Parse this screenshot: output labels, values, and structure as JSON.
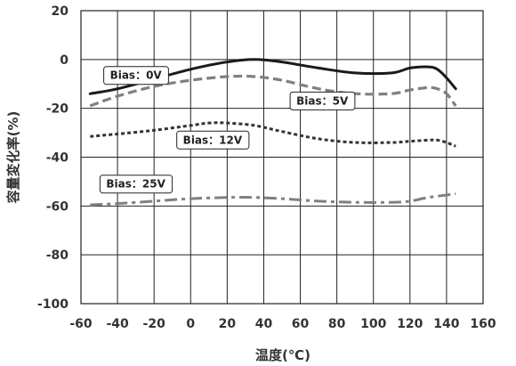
{
  "chart_data": {
    "type": "line",
    "xlabel": "温度(℃)",
    "ylabel": "容量変化率(%)",
    "xlim": [
      -60,
      160
    ],
    "ylim": [
      -100,
      20
    ],
    "xticks": [
      -60,
      -40,
      -20,
      0,
      20,
      40,
      60,
      80,
      100,
      120,
      140,
      160
    ],
    "yticks": [
      20,
      0,
      -20,
      -40,
      -60,
      -80,
      -100
    ],
    "grid": true,
    "series": [
      {
        "name": "Bias：0V",
        "style": "solid",
        "color": "#1a1a1a",
        "x": [
          -55,
          -40,
          -20,
          0,
          20,
          35,
          50,
          70,
          90,
          110,
          120,
          130,
          135,
          140,
          145
        ],
        "y": [
          -14,
          -12,
          -8,
          -4,
          -1,
          0,
          -1,
          -3.5,
          -5.5,
          -5.5,
          -3.5,
          -3,
          -4,
          -7.5,
          -12
        ]
      },
      {
        "name": "Bias：5V",
        "style": "dash",
        "color": "#808080",
        "x": [
          -55,
          -40,
          -20,
          0,
          20,
          35,
          50,
          70,
          90,
          110,
          120,
          130,
          135,
          140,
          145
        ],
        "y": [
          -19,
          -15,
          -11,
          -8.5,
          -7,
          -7,
          -8.5,
          -12,
          -14,
          -14,
          -12.5,
          -11.5,
          -12,
          -14,
          -19
        ]
      },
      {
        "name": "Bias：12V",
        "style": "dot",
        "color": "#333333",
        "x": [
          -55,
          -40,
          -20,
          0,
          10,
          20,
          35,
          50,
          70,
          90,
          110,
          120,
          130,
          135,
          140,
          145
        ],
        "y": [
          -31.5,
          -30.5,
          -29,
          -27,
          -26,
          -26,
          -27,
          -29.5,
          -32.5,
          -34,
          -34,
          -33.5,
          -33,
          -33,
          -34,
          -35.5
        ]
      },
      {
        "name": "Bias：25V",
        "style": "dashdot",
        "color": "#808080",
        "x": [
          -55,
          -40,
          -20,
          0,
          20,
          35,
          50,
          70,
          90,
          110,
          120,
          130,
          140,
          145
        ],
        "y": [
          -59.5,
          -59,
          -58,
          -57,
          -56.5,
          -56.5,
          -57,
          -58,
          -58.5,
          -58.5,
          -58,
          -56.5,
          -55.5,
          -55
        ]
      }
    ],
    "annotations": [
      {
        "text": "Bias：0V",
        "series": 0,
        "at": [
          -30,
          -6.5
        ]
      },
      {
        "text": "Bias：5V",
        "series": 1,
        "at": [
          72,
          -17
        ]
      },
      {
        "text": "Bias：12V",
        "series": 2,
        "at": [
          12,
          -33
        ]
      },
      {
        "text": "Bias：25V",
        "series": 3,
        "at": [
          -30,
          -51
        ]
      }
    ]
  }
}
